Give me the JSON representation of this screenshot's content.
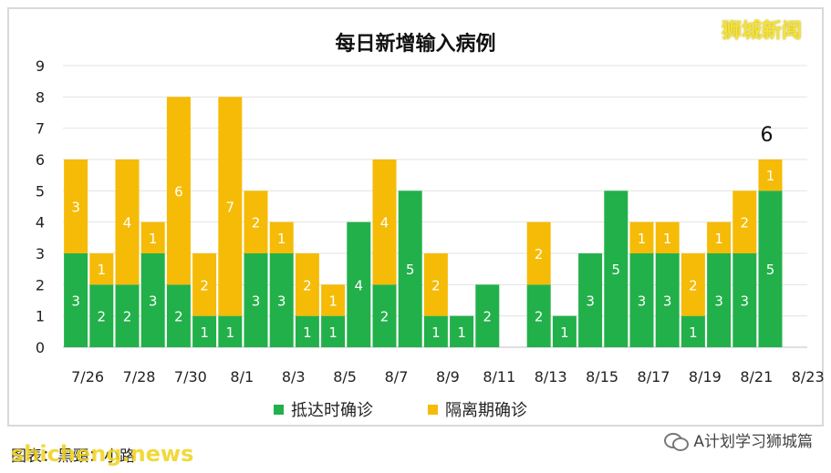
{
  "brand": "狮城新闻",
  "footer_caption": "图表：黑頸：小路",
  "watermark": "shicheng.news",
  "account_name": "A计划学习狮城篇",
  "chart_data": {
    "type": "bar",
    "stacked": true,
    "title": "每日新增输入病例",
    "categories": [
      "7/26",
      "7/27",
      "7/28",
      "7/29",
      "7/30",
      "7/31",
      "8/1",
      "8/2",
      "8/3",
      "8/4",
      "8/5",
      "8/6",
      "8/7",
      "8/8",
      "8/9",
      "8/10",
      "8/11",
      "8/12",
      "8/13",
      "8/14",
      "8/15",
      "8/16",
      "8/17",
      "8/18",
      "8/19",
      "8/20",
      "8/21",
      "8/22"
    ],
    "x_tick_labels": [
      "7/26",
      "7/28",
      "7/30",
      "8/1",
      "8/3",
      "8/5",
      "8/7",
      "8/9",
      "8/11",
      "8/13",
      "8/15",
      "8/17",
      "8/19",
      "8/21",
      "8/23"
    ],
    "series": [
      {
        "name": "抵达时确诊",
        "color": "#22b04a",
        "values": [
          3,
          2,
          2,
          3,
          2,
          1,
          1,
          3,
          3,
          1,
          1,
          4,
          2,
          5,
          1,
          1,
          2,
          0,
          2,
          1,
          3,
          5,
          3,
          3,
          1,
          3,
          3,
          5
        ]
      },
      {
        "name": "隔离期确诊",
        "color": "#f5bb06",
        "values": [
          3,
          1,
          4,
          1,
          6,
          2,
          7,
          2,
          1,
          2,
          1,
          0,
          4,
          0,
          2,
          0,
          0,
          0,
          2,
          0,
          0,
          0,
          1,
          1,
          2,
          1,
          2,
          1
        ]
      }
    ],
    "ylim": [
      0,
      9
    ],
    "yticks": [
      0,
      1,
      2,
      3,
      4,
      5,
      6,
      7,
      8,
      9
    ],
    "grid": true,
    "legend": "bottom",
    "annotation": {
      "text": "6",
      "category": "8/22"
    }
  }
}
